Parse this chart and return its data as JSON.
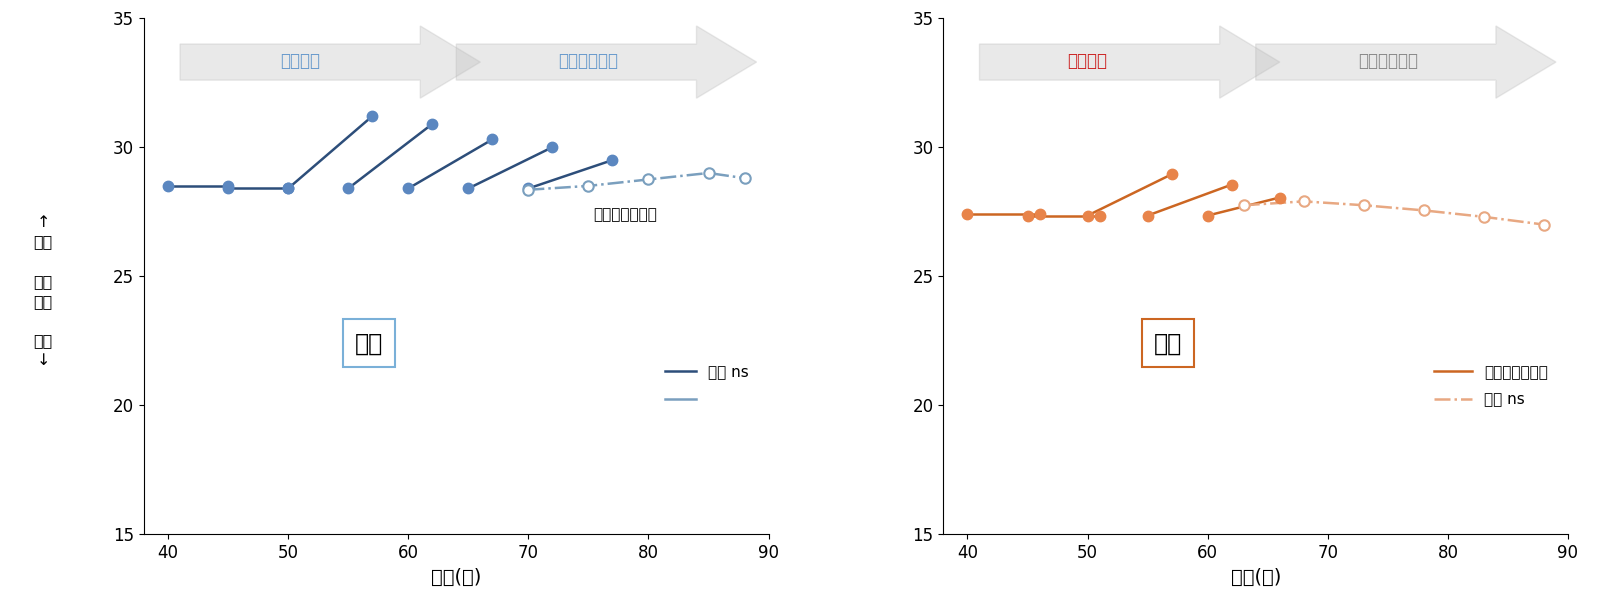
{
  "male_segments_solid": [
    {
      "x": [
        40,
        45
      ],
      "y": [
        28.5,
        28.5
      ]
    },
    {
      "x": [
        45,
        50
      ],
      "y": [
        28.4,
        28.4
      ]
    },
    {
      "x": [
        50,
        57
      ],
      "y": [
        28.4,
        31.2
      ]
    },
    {
      "x": [
        55,
        62
      ],
      "y": [
        28.4,
        30.9
      ]
    },
    {
      "x": [
        60,
        67
      ],
      "y": [
        28.4,
        30.3
      ]
    },
    {
      "x": [
        65,
        72
      ],
      "y": [
        28.4,
        30.0
      ]
    },
    {
      "x": [
        70,
        77
      ],
      "y": [
        28.4,
        29.5
      ]
    }
  ],
  "male_ns_x": [
    70,
    75,
    80,
    85,
    88
  ],
  "male_ns_y": [
    28.35,
    28.5,
    28.75,
    29.0,
    28.8
  ],
  "male_solid_color": "#2d4e7a",
  "male_dot_color": "#5b87c0",
  "male_ns_color": "#7a9fbe",
  "female_segments_solid": [
    {
      "x": [
        40,
        46
      ],
      "y": [
        27.4,
        27.4
      ]
    },
    {
      "x": [
        45,
        51
      ],
      "y": [
        27.35,
        27.35
      ]
    },
    {
      "x": [
        50,
        57
      ],
      "y": [
        27.35,
        28.95
      ]
    },
    {
      "x": [
        55,
        62
      ],
      "y": [
        27.35,
        28.55
      ]
    },
    {
      "x": [
        60,
        66
      ],
      "y": [
        27.35,
        28.05
      ]
    }
  ],
  "female_ns_x": [
    63,
    68,
    73,
    78,
    83,
    88
  ],
  "female_ns_y": [
    27.75,
    27.9,
    27.75,
    27.55,
    27.3,
    27.0
  ],
  "female_solid_color": "#cc6622",
  "female_dot_color": "#e8844a",
  "female_ns_color": "#e8a882",
  "xlim": [
    38,
    90
  ],
  "ylim": [
    15,
    35
  ],
  "yticks": [
    15,
    20,
    25,
    30,
    35
  ],
  "xticks": [
    40,
    50,
    60,
    70,
    80,
    90
  ],
  "xlabel": "年齢(歳)",
  "male_label": "男性",
  "female_label": "女性",
  "arrow_label_rise": "上昇する",
  "arrow_label_stable": "安定している",
  "legend_significant": "傾き有意（正）",
  "legend_ns": "傾き ns",
  "ylabel_text": "↑\n高い\n \n自尊\n感情\n \n低い\n↓",
  "background": "#ffffff",
  "male_rise_text_color": "#6699cc",
  "male_stable_text_color": "#6699cc",
  "female_rise_text_color": "#cc2222",
  "female_stable_text_color": "#888888",
  "arrow_gray": "#bbbbbb",
  "male_box_color": "#7ab0d8",
  "female_box_color": "#cc6622"
}
